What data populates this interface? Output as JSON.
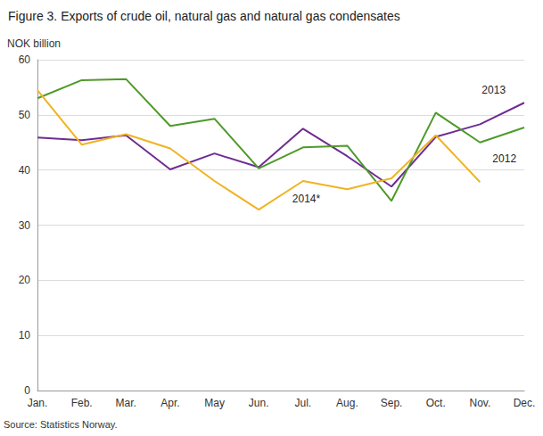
{
  "chart_data": {
    "type": "line",
    "title": "Figure 3. Exports of crude oil, natural gas and natural gas condensates",
    "y_label": "NOK billion",
    "source": "Source: Statistics Norway.",
    "categories": [
      "Jan.",
      "Feb.",
      "Mar.",
      "Apr.",
      "May",
      "Jun.",
      "Jul.",
      "Aug.",
      "Sep.",
      "Oct.",
      "Nov.",
      "Dec."
    ],
    "series": [
      {
        "name": "2013",
        "color": "#6f2c91",
        "values": [
          45.9,
          45.4,
          46.3,
          40.1,
          43.0,
          40.5,
          47.5,
          42.5,
          37.0,
          46.0,
          48.3,
          52.2
        ]
      },
      {
        "name": "2012",
        "color": "#4e9a2a",
        "values": [
          53.0,
          56.3,
          56.5,
          48.0,
          49.3,
          40.3,
          44.1,
          44.4,
          34.4,
          50.4,
          45.0,
          47.7
        ]
      },
      {
        "name": "2014*",
        "color": "#f0b323",
        "values": [
          54.5,
          44.6,
          46.5,
          43.9,
          38.0,
          32.8,
          38.0,
          36.5,
          38.5,
          46.3,
          37.8,
          null
        ]
      }
    ],
    "ylim": [
      0,
      60
    ],
    "yticks": [
      0,
      10,
      20,
      30,
      40,
      50,
      60
    ],
    "grid": true,
    "marker": "none",
    "line_style": "solid"
  }
}
